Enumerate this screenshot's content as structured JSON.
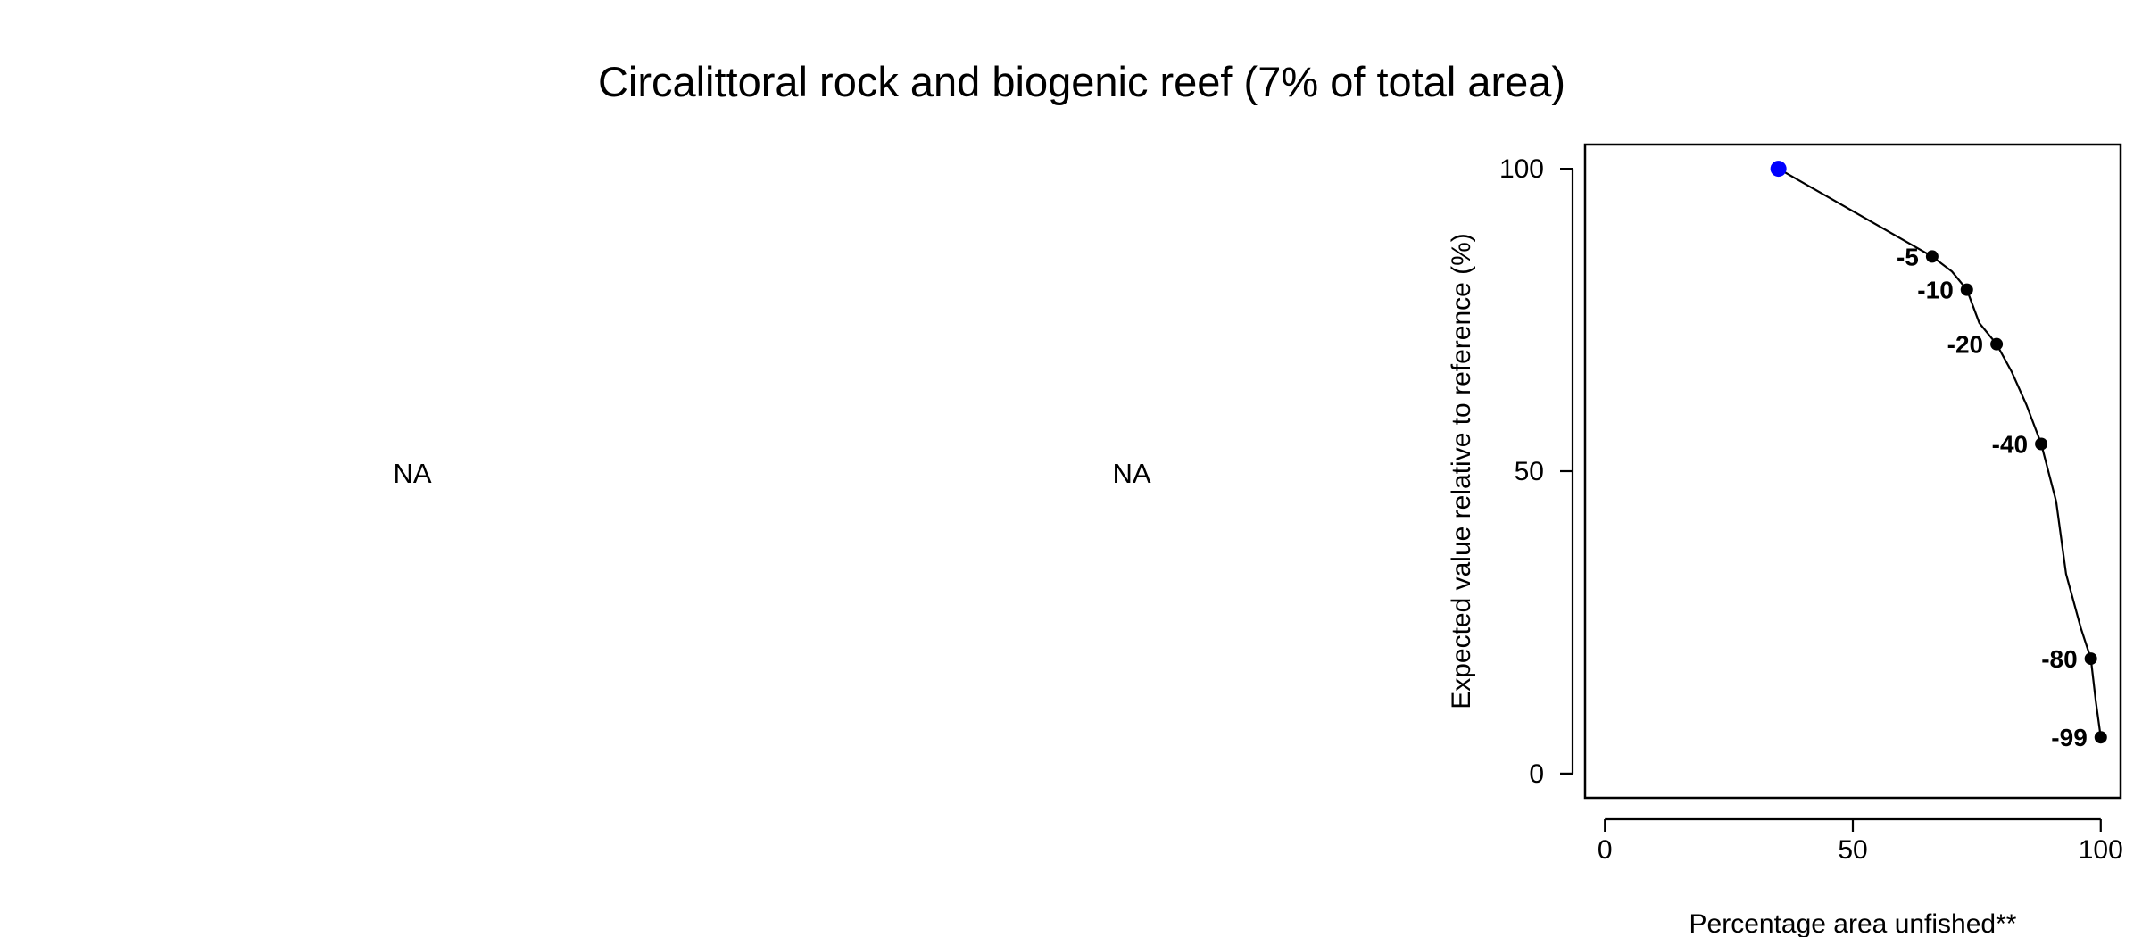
{
  "title": "Circalittoral rock and biogenic reef (7% of total area)",
  "panels": [
    {
      "text": "NA"
    },
    {
      "text": "NA"
    }
  ],
  "chart_data": {
    "type": "line",
    "title": "",
    "xlabel": "Percentage area unfished**",
    "ylabel": "Expected value relative to reference (%)",
    "xlim": [
      -4,
      104
    ],
    "ylim": [
      -4,
      104
    ],
    "xticks": [
      0,
      50,
      100
    ],
    "yticks": [
      0,
      50,
      100
    ],
    "grid": false,
    "line_color": "#000000",
    "point_color": "#000000",
    "highlight_color": "#0000ff",
    "highlight": {
      "x": 35,
      "y": 100
    },
    "line_points": [
      {
        "x": 35,
        "y": 100
      },
      {
        "x": 66,
        "y": 85.5
      },
      {
        "x": 70,
        "y": 83
      },
      {
        "x": 73,
        "y": 80
      },
      {
        "x": 75.5,
        "y": 74.5
      },
      {
        "x": 79,
        "y": 71
      },
      {
        "x": 82,
        "y": 66.5
      },
      {
        "x": 85,
        "y": 61
      },
      {
        "x": 88,
        "y": 54.5
      },
      {
        "x": 91,
        "y": 45
      },
      {
        "x": 93,
        "y": 33
      },
      {
        "x": 96,
        "y": 24
      },
      {
        "x": 98,
        "y": 19
      },
      {
        "x": 99,
        "y": 12
      },
      {
        "x": 100,
        "y": 6
      }
    ],
    "labeled_points": [
      {
        "label": "-5",
        "x": 66,
        "y": 85.5
      },
      {
        "label": "-10",
        "x": 73,
        "y": 80
      },
      {
        "label": "-20",
        "x": 79,
        "y": 71
      },
      {
        "label": "-40",
        "x": 88,
        "y": 54.5
      },
      {
        "label": "-80",
        "x": 98,
        "y": 19
      },
      {
        "label": "-99",
        "x": 100,
        "y": 6
      }
    ]
  }
}
